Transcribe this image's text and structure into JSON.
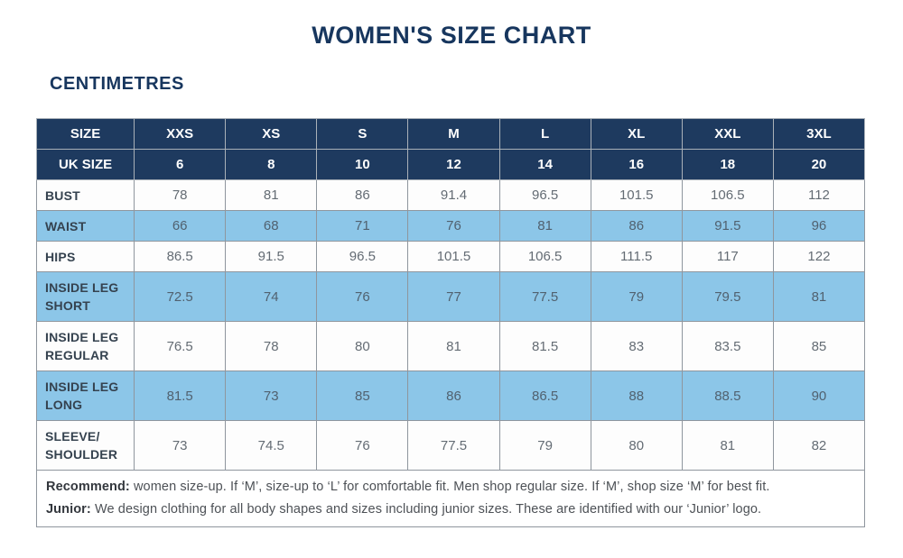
{
  "page": {
    "title": "WOMEN'S SIZE CHART",
    "subtitle": "CENTIMETRES"
  },
  "colors": {
    "header_navy": "#1e3a5f",
    "highlight_blue": "#8cc6e8",
    "title_navy": "#17365e",
    "grid_border": "#8f969e",
    "value_text": "#646c74",
    "label_text": "#35424f"
  },
  "table": {
    "header_rows": [
      {
        "label": "SIZE",
        "values": [
          "XXS",
          "XS",
          "S",
          "M",
          "L",
          "XL",
          "XXL",
          "3XL"
        ]
      },
      {
        "label": "UK SIZE",
        "values": [
          "6",
          "8",
          "10",
          "12",
          "14",
          "16",
          "18",
          "20"
        ]
      }
    ],
    "rows": [
      {
        "label_lines": [
          "BUST"
        ],
        "values": [
          "78",
          "81",
          "86",
          "91.4",
          "96.5",
          "101.5",
          "106.5",
          "112"
        ],
        "highlight": false,
        "tall": false
      },
      {
        "label_lines": [
          "WAIST"
        ],
        "values": [
          "66",
          "68",
          "71",
          "76",
          "81",
          "86",
          "91.5",
          "96"
        ],
        "highlight": true,
        "tall": false
      },
      {
        "label_lines": [
          "HIPS"
        ],
        "values": [
          "86.5",
          "91.5",
          "96.5",
          "101.5",
          "106.5",
          "111.5",
          "117",
          "122"
        ],
        "highlight": false,
        "tall": false
      },
      {
        "label_lines": [
          "INSIDE LEG",
          "SHORT"
        ],
        "values": [
          "72.5",
          "74",
          "76",
          "77",
          "77.5",
          "79",
          "79.5",
          "81"
        ],
        "highlight": true,
        "tall": true
      },
      {
        "label_lines": [
          "INSIDE LEG",
          "REGULAR"
        ],
        "values": [
          "76.5",
          "78",
          "80",
          "81",
          "81.5",
          "83",
          "83.5",
          "85"
        ],
        "highlight": false,
        "tall": true
      },
      {
        "label_lines": [
          "INSIDE LEG",
          "LONG"
        ],
        "values": [
          "81.5",
          "73",
          "85",
          "86",
          "86.5",
          "88",
          "88.5",
          "90"
        ],
        "highlight": true,
        "tall": true
      },
      {
        "label_lines": [
          "SLEEVE/",
          "SHOULDER"
        ],
        "values": [
          "73",
          "74.5",
          "76",
          "77.5",
          "79",
          "80",
          "81",
          "82"
        ],
        "highlight": false,
        "tall": true
      }
    ],
    "notes": [
      {
        "lead": "Recommend:",
        "text": " women size-up. If ‘M’, size-up to ‘L’ for comfortable fit. Men shop regular size. If ‘M’, shop size ‘M’ for best fit."
      },
      {
        "lead": "Junior:",
        "text": " We design clothing for all body shapes and sizes including junior sizes. These are identified with our ‘Junior’ logo."
      }
    ]
  }
}
